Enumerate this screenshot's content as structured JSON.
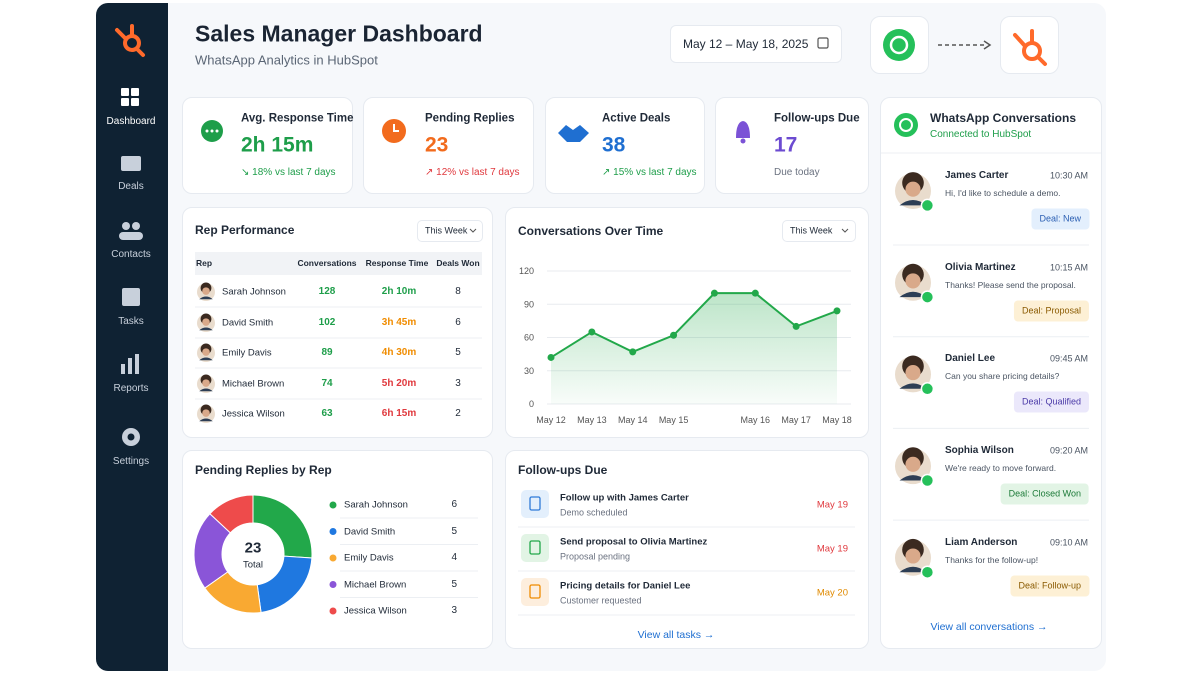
{
  "sidebar": {
    "nav": [
      "Dashboard",
      "Deals",
      "Contacts",
      "Tasks",
      "Reports",
      "Settings"
    ],
    "active": 0
  },
  "header": {
    "title": "Sales Manager Dashboard",
    "subtitle": "WhatsApp Analytics in HubSpot",
    "date_range": "May 12 – May 18, 2025"
  },
  "kpis": [
    {
      "label": "Avg. Response Time",
      "value": "2h 15m",
      "delta": "↘ 18% vs last 7 days",
      "color": "#1e9e4a",
      "delta_color": "#1e9e4a"
    },
    {
      "label": "Pending Replies",
      "value": "23",
      "delta": "↗ 12% vs last 7 days",
      "color": "#f26b1d",
      "delta_color": "#e0393e"
    },
    {
      "label": "Active Deals",
      "value": "38",
      "delta": "↗ 15% vs last 7 days",
      "color": "#1f6fd1",
      "delta_color": "#1e9e4a"
    },
    {
      "label": "Follow-ups Due",
      "value": "17",
      "delta": "Due today",
      "color": "#6c4bd1",
      "delta_color": "#6b7280"
    }
  ],
  "rep_performance": {
    "title": "Rep Performance",
    "filter": "This Week",
    "columns": [
      "Rep",
      "Conversations",
      "Response Time",
      "Deals Won"
    ],
    "rows": [
      {
        "name": "Sarah Johnson",
        "conversations": "128",
        "response": "2h 10m",
        "deals": "8",
        "response_color": "#1e9e4a"
      },
      {
        "name": "David Smith",
        "conversations": "102",
        "response": "3h 45m",
        "deals": "6",
        "response_color": "#f08c00"
      },
      {
        "name": "Emily Davis",
        "conversations": "89",
        "response": "4h 30m",
        "deals": "5",
        "response_color": "#f08c00"
      },
      {
        "name": "Michael Brown",
        "conversations": "74",
        "response": "5h 20m",
        "deals": "3",
        "response_color": "#e0393e"
      },
      {
        "name": "Jessica Wilson",
        "conversations": "63",
        "response": "6h 15m",
        "deals": "2",
        "response_color": "#e0393e"
      }
    ]
  },
  "conversations_chart": {
    "type": "line",
    "title": "Conversations Over Time",
    "filter": "This Week",
    "categories": [
      "May 12",
      "May 13",
      "May 14",
      "May 15",
      null,
      "May 16",
      "May 17",
      "May 18"
    ],
    "series": [
      {
        "name": "Conversations",
        "color": "#22a84a",
        "values": [
          42,
          65,
          47,
          62,
          100,
          100,
          70,
          84
        ]
      }
    ],
    "ylim": [
      0,
      120
    ],
    "yticks": [
      0,
      30,
      60,
      90,
      120
    ],
    "grid": true
  },
  "pending_chart": {
    "type": "pie",
    "title": "Pending Replies by Rep",
    "total": "23",
    "total_label": "Total",
    "categories": [
      "Sarah Johnson",
      "David Smith",
      "Emily Davis",
      "Michael Brown",
      "Jessica Wilson"
    ],
    "values": [
      6,
      5,
      4,
      5,
      3
    ],
    "colors": [
      "#22a84a",
      "#1f78e0",
      "#f9a932",
      "#8a55d8",
      "#ee4b4b"
    ]
  },
  "followups": {
    "title": "Follow-ups Due",
    "items": [
      {
        "title": "Follow up with James Carter",
        "sub": "Demo scheduled",
        "date": "May 19",
        "color": "#e0393e",
        "icon_bg": "#e3effc",
        "icon_color": "#2f7ad8"
      },
      {
        "title": "Send proposal to Olivia Martinez",
        "sub": "Proposal pending",
        "date": "May 19",
        "color": "#e0393e",
        "icon_bg": "#e2f4e5",
        "icon_color": "#22a84a"
      },
      {
        "title": "Pricing details for Daniel Lee",
        "sub": "Customer requested",
        "date": "May 20",
        "color": "#e08a00",
        "icon_bg": "#fdeedd",
        "icon_color": "#f08c00"
      }
    ],
    "link": "View all tasks →"
  },
  "whatsapp": {
    "title": "WhatsApp Conversations",
    "subtitle": "Connected to HubSpot",
    "items": [
      {
        "name": "James Carter",
        "time": "10:30 AM",
        "message": "Hi, I'd like to schedule a demo.",
        "deal": "Deal: New",
        "bg": "#e3effd",
        "fg": "#2b5fb3"
      },
      {
        "name": "Olivia Martinez",
        "time": "10:15 AM",
        "message": "Thanks! Please send the proposal.",
        "deal": "Deal: Proposal",
        "bg": "#fdf0d5",
        "fg": "#8a5a00"
      },
      {
        "name": "Daniel Lee",
        "time": "09:45 AM",
        "message": "Can you share pricing details?",
        "deal": "Deal: Qualified",
        "bg": "#ebe8fb",
        "fg": "#4b3aa8"
      },
      {
        "name": "Sophia Wilson",
        "time": "09:20 AM",
        "message": "We're ready to move forward.",
        "deal": "Deal: Closed Won",
        "bg": "#e2f4e5",
        "fg": "#1c7a38"
      },
      {
        "name": "Liam Anderson",
        "time": "09:10 AM",
        "message": "Thanks for the follow-up!",
        "deal": "Deal: Follow-up",
        "bg": "#fdf0d5",
        "fg": "#8a5a00"
      }
    ],
    "link": "View all conversations →"
  }
}
